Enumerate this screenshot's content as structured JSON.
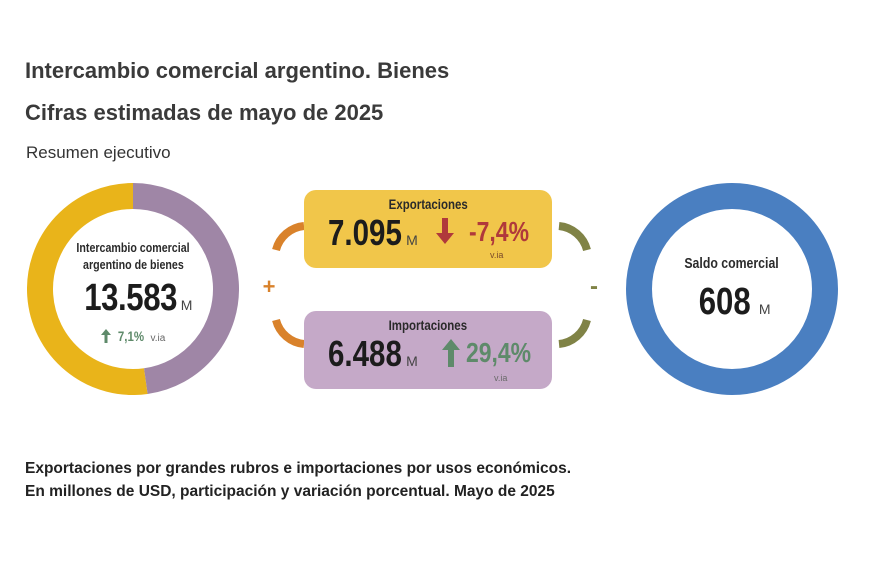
{
  "header": {
    "title": "Intercambio comercial argentino. Bienes",
    "subtitle": "Cifras estimadas de mayo de 2025",
    "section": "Resumen ejecutivo"
  },
  "intercambio": {
    "label_line1": "Intercambio comercial",
    "label_line2": "argentino de bienes",
    "value": "13.583",
    "unit": "M",
    "change": "7,1%",
    "change_suffix": "v.ia",
    "direction_icon": "arrow-up-icon",
    "share_exports": 52.2,
    "share_imports": 47.8,
    "color_exports": "#e9b41a",
    "color_imports": "#9f86a6",
    "change_color": "#5e8a6a"
  },
  "exportaciones": {
    "label": "Exportaciones",
    "value": "7.095",
    "unit": "M",
    "change": "-7,4%",
    "change_suffix": "v.ia",
    "direction_icon": "arrow-down-icon",
    "box_color": "#f1c64a",
    "change_color": "#b0393b"
  },
  "importaciones": {
    "label": "Importaciones",
    "value": "6.488",
    "unit": "M",
    "change": "29,4%",
    "change_suffix": "v.ia",
    "direction_icon": "arrow-up-icon",
    "box_color": "#c5a9c8",
    "change_color": "#5e8a6a"
  },
  "operators": {
    "plus": "+",
    "minus": "-",
    "plus_color": "#d9822b",
    "minus_color": "#808346"
  },
  "saldo": {
    "label": "Saldo comercial",
    "value": "608",
    "unit": "M",
    "ring_color": "#4a7fc1"
  },
  "footer": {
    "line1": "Exportaciones por grandes rubros e importaciones por usos económicos.",
    "line2": "En millones de USD, participación y variación porcentual. Mayo de 2025"
  }
}
